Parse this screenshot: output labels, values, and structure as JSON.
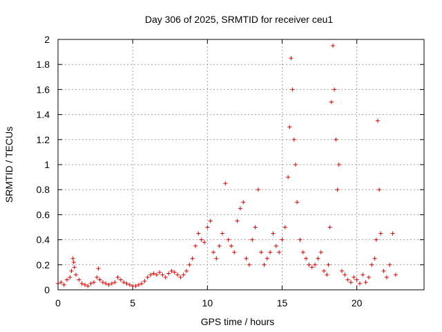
{
  "chart_data": {
    "type": "scatter",
    "title": "Day 306 of 2025, SRMTID for receiver ceu1",
    "xlabel": "GPS time / hours",
    "ylabel": "SRMTID / TECUs",
    "xlim": [
      0,
      24.5
    ],
    "ylim": [
      0,
      2
    ],
    "x_ticks": [
      0,
      5,
      10,
      15,
      20
    ],
    "x_tick_labels": [
      "0",
      "5",
      "10",
      "15",
      "20"
    ],
    "y_ticks": [
      0,
      0.2,
      0.4,
      0.6,
      0.8,
      1,
      1.2,
      1.4,
      1.6,
      1.8,
      2
    ],
    "y_tick_labels": [
      "0",
      "0.2",
      "0.4",
      "0.6",
      "0.8",
      "1",
      "1.2",
      "1.4",
      "1.6",
      "1.8",
      "2"
    ],
    "grid": true,
    "marker": "+",
    "color": "#e00000",
    "series": [
      {
        "name": "ceu1",
        "x": [
          0.0,
          0.2,
          0.4,
          0.6,
          0.8,
          0.9,
          1.0,
          1.05,
          1.1,
          1.2,
          1.4,
          1.6,
          1.8,
          2.0,
          2.2,
          2.4,
          2.6,
          2.7,
          2.8,
          3.0,
          3.2,
          3.4,
          3.6,
          3.8,
          4.0,
          4.2,
          4.4,
          4.6,
          4.8,
          5.0,
          5.2,
          5.4,
          5.6,
          5.8,
          6.0,
          6.2,
          6.4,
          6.6,
          6.8,
          7.0,
          7.2,
          7.4,
          7.6,
          7.8,
          8.0,
          8.2,
          8.4,
          8.6,
          8.8,
          9.0,
          9.2,
          9.4,
          9.6,
          9.8,
          10.0,
          10.2,
          10.4,
          10.6,
          10.8,
          11.0,
          11.2,
          11.4,
          11.6,
          11.8,
          12.0,
          12.2,
          12.4,
          12.6,
          12.8,
          13.0,
          13.2,
          13.4,
          13.6,
          13.8,
          14.0,
          14.2,
          14.4,
          14.6,
          14.8,
          15.0,
          15.2,
          15.4,
          15.5,
          15.6,
          15.7,
          15.8,
          15.9,
          16.0,
          16.2,
          16.4,
          16.6,
          16.8,
          17.0,
          17.2,
          17.4,
          17.6,
          17.8,
          18.0,
          18.1,
          18.2,
          18.3,
          18.4,
          18.5,
          18.6,
          18.7,
          18.8,
          19.0,
          19.2,
          19.4,
          19.6,
          19.8,
          20.0,
          20.2,
          20.4,
          20.6,
          20.8,
          21.0,
          21.2,
          21.3,
          21.4,
          21.5,
          21.6,
          21.8,
          22.0,
          22.2,
          22.4,
          22.6
        ],
        "y": [
          0.05,
          0.06,
          0.04,
          0.08,
          0.1,
          0.15,
          0.25,
          0.22,
          0.18,
          0.12,
          0.08,
          0.05,
          0.04,
          0.03,
          0.05,
          0.06,
          0.1,
          0.17,
          0.08,
          0.06,
          0.05,
          0.04,
          0.05,
          0.06,
          0.1,
          0.08,
          0.06,
          0.05,
          0.04,
          0.03,
          0.03,
          0.04,
          0.05,
          0.07,
          0.1,
          0.12,
          0.13,
          0.12,
          0.14,
          0.12,
          0.1,
          0.13,
          0.15,
          0.14,
          0.12,
          0.1,
          0.12,
          0.15,
          0.2,
          0.25,
          0.35,
          0.45,
          0.4,
          0.38,
          0.5,
          0.55,
          0.3,
          0.25,
          0.35,
          0.45,
          0.85,
          0.4,
          0.35,
          0.3,
          0.55,
          0.65,
          0.7,
          0.25,
          0.2,
          0.4,
          0.5,
          0.8,
          0.3,
          0.2,
          0.25,
          0.3,
          0.45,
          0.35,
          0.3,
          0.4,
          0.5,
          0.9,
          1.3,
          1.85,
          1.6,
          1.2,
          1.0,
          0.7,
          0.4,
          0.3,
          0.25,
          0.2,
          0.18,
          0.2,
          0.25,
          0.3,
          0.15,
          0.12,
          0.2,
          0.5,
          1.5,
          1.95,
          1.6,
          1.2,
          0.8,
          1.0,
          0.15,
          0.12,
          0.08,
          0.06,
          0.1,
          0.08,
          0.05,
          0.12,
          0.06,
          0.1,
          0.2,
          0.25,
          0.4,
          1.35,
          0.8,
          0.45,
          0.15,
          0.1,
          0.2,
          0.45,
          0.12
        ]
      }
    ]
  }
}
